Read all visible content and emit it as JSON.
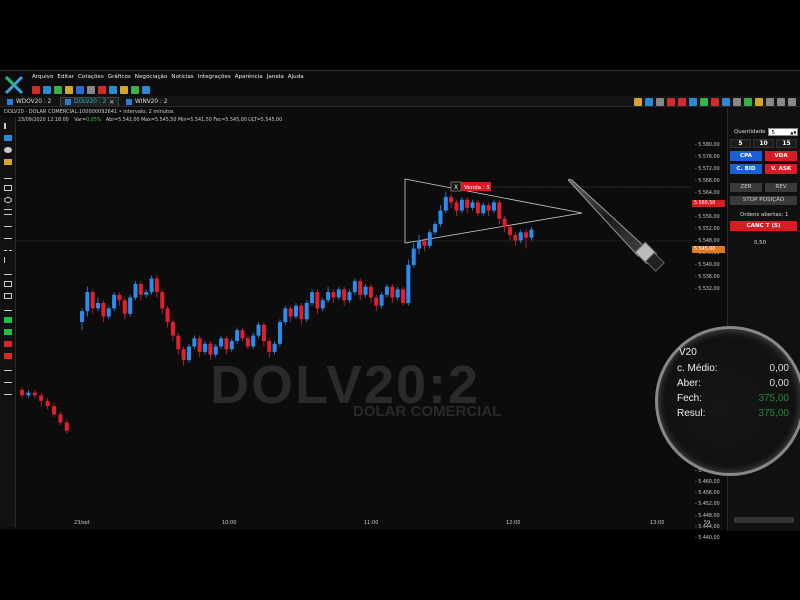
{
  "menu": [
    "Arquivo",
    "Editar",
    "Cotações",
    "Gráficos",
    "Negociação",
    "Notícias",
    "Integrações",
    "Aparência",
    "Janela",
    "Ajuda"
  ],
  "tabs": [
    {
      "label": "WDOV20 : 2",
      "active": false
    },
    {
      "label": "DOLV20 : 2",
      "active": true,
      "close": "✕"
    },
    {
      "label": "WINV20 : 2",
      "active": false
    }
  ],
  "infobar": {
    "symbol": "DOLV20 - DOLAR COMERCIAL:100000092641 • intervalo: 2 minutos",
    "datetime": "23/09/2020 12:18:00",
    "var_label": "Var=",
    "var_value": "0,05%",
    "stats": "Abr=5.542,00  Max=5.545,50  Min=5.541,50  Fec=5.545,00  ULT=5.545,00"
  },
  "watermark": {
    "title": "DOLV20:2",
    "subtitle": "DOLAR COMERCIAL"
  },
  "order_flag": {
    "close": "X",
    "label": "Venda : 5"
  },
  "yaxis": {
    "ticks": [
      "5.580,00",
      "5.576,00",
      "5.572,00",
      "5.568,00",
      "5.564,00",
      "5.560,50",
      "5.556,00",
      "5.552,00",
      "5.548,00",
      "5.545,00",
      "5.540,00",
      "5.536,00",
      "5.532,00",
      "5.484,00",
      "5.480,00",
      "5.476,00",
      "5.472,00",
      "5.468,00",
      "5.464,00",
      "5.460,00",
      "5.456,00",
      "5.452,00",
      "5.448,00",
      "5.444,00",
      "5.440,00"
    ],
    "sell_flag": "5.560,50",
    "last_flag": "5.545,00"
  },
  "xaxis": {
    "ticks": [
      "23/set",
      "10:00",
      "11:00",
      "12:00",
      "13:00"
    ],
    "corner": "59"
  },
  "panel": {
    "quantity_label": "Quantidade",
    "quantity_value": "5",
    "quick_qty": [
      "5",
      "10",
      "15"
    ],
    "buy": "CPA",
    "sell": "VDA",
    "buy_bid": "C. BID",
    "sell_ask": "V. ASK",
    "zero": "ZER",
    "reverse": "REV",
    "stop": "STOP POSIÇÃO",
    "open_orders": "Ordens abertas: 1",
    "cancel": "CANC T (5)",
    "offset": "0,50"
  },
  "lens": {
    "symbol": "V20",
    "rows": [
      {
        "label": "c. Médio:",
        "value": "0,00"
      },
      {
        "label": "Aber:",
        "value": "0,00"
      },
      {
        "label": "Fech:",
        "value": "375,00"
      },
      {
        "label": "Resul:",
        "value": "375,00"
      }
    ]
  },
  "colors": {
    "up": "#2b8cf0",
    "down": "#e0202c",
    "buy": "#1a5fd6",
    "sell": "#d81c24",
    "cancel": "#d81c24",
    "background": "#000000"
  },
  "chart_data": {
    "type": "candlestick",
    "symbol": "DOLV20",
    "interval": "2 minutos",
    "x": [
      "23/set",
      "10:00",
      "11:00",
      "12:00",
      "13:00"
    ],
    "ylim": [
      5440,
      5582
    ],
    "candles": [
      {
        "o": 5486,
        "c": 5484,
        "h": 5487,
        "l": 5483
      },
      {
        "o": 5484,
        "c": 5485,
        "h": 5486,
        "l": 5483
      },
      {
        "o": 5485,
        "c": 5484,
        "h": 5486,
        "l": 5483
      },
      {
        "o": 5484,
        "c": 5482,
        "h": 5485,
        "l": 5480
      },
      {
        "o": 5482,
        "c": 5480,
        "h": 5483,
        "l": 5479
      },
      {
        "o": 5480,
        "c": 5477,
        "h": 5481,
        "l": 5476
      },
      {
        "o": 5477,
        "c": 5474,
        "h": 5478,
        "l": 5473
      },
      {
        "o": 5474,
        "c": 5471,
        "h": 5475,
        "l": 5470
      },
      {
        "o": 5511,
        "c": 5515,
        "h": 5516,
        "l": 5508
      },
      {
        "o": 5515,
        "c": 5522,
        "h": 5524,
        "l": 5513
      },
      {
        "o": 5522,
        "c": 5516,
        "h": 5523,
        "l": 5514
      },
      {
        "o": 5516,
        "c": 5518,
        "h": 5520,
        "l": 5515
      },
      {
        "o": 5518,
        "c": 5513,
        "h": 5519,
        "l": 5511
      },
      {
        "o": 5513,
        "c": 5516,
        "h": 5517,
        "l": 5512
      },
      {
        "o": 5516,
        "c": 5521,
        "h": 5522,
        "l": 5515
      },
      {
        "o": 5521,
        "c": 5519,
        "h": 5522,
        "l": 5517
      },
      {
        "o": 5519,
        "c": 5514,
        "h": 5520,
        "l": 5512
      },
      {
        "o": 5514,
        "c": 5520,
        "h": 5521,
        "l": 5513
      },
      {
        "o": 5520,
        "c": 5525,
        "h": 5526,
        "l": 5519
      },
      {
        "o": 5525,
        "c": 5521,
        "h": 5526,
        "l": 5519
      },
      {
        "o": 5521,
        "c": 5522,
        "h": 5523,
        "l": 5520
      },
      {
        "o": 5522,
        "c": 5527,
        "h": 5528,
        "l": 5521
      },
      {
        "o": 5527,
        "c": 5522,
        "h": 5528,
        "l": 5520
      },
      {
        "o": 5522,
        "c": 5516,
        "h": 5523,
        "l": 5514
      },
      {
        "o": 5516,
        "c": 5511,
        "h": 5517,
        "l": 5509
      },
      {
        "o": 5511,
        "c": 5506,
        "h": 5512,
        "l": 5504
      },
      {
        "o": 5506,
        "c": 5501,
        "h": 5507,
        "l": 5499
      },
      {
        "o": 5501,
        "c": 5497,
        "h": 5502,
        "l": 5495
      },
      {
        "o": 5497,
        "c": 5502,
        "h": 5503,
        "l": 5496
      },
      {
        "o": 5502,
        "c": 5505,
        "h": 5506,
        "l": 5501
      },
      {
        "o": 5505,
        "c": 5500,
        "h": 5506,
        "l": 5498
      },
      {
        "o": 5500,
        "c": 5503,
        "h": 5504,
        "l": 5499
      },
      {
        "o": 5503,
        "c": 5499,
        "h": 5504,
        "l": 5497
      },
      {
        "o": 5499,
        "c": 5502,
        "h": 5503,
        "l": 5498
      },
      {
        "o": 5502,
        "c": 5505,
        "h": 5506,
        "l": 5501
      },
      {
        "o": 5505,
        "c": 5501,
        "h": 5506,
        "l": 5499
      },
      {
        "o": 5501,
        "c": 5504,
        "h": 5505,
        "l": 5500
      },
      {
        "o": 5504,
        "c": 5508,
        "h": 5509,
        "l": 5503
      },
      {
        "o": 5508,
        "c": 5505,
        "h": 5509,
        "l": 5504
      },
      {
        "o": 5505,
        "c": 5502,
        "h": 5506,
        "l": 5501
      },
      {
        "o": 5502,
        "c": 5506,
        "h": 5507,
        "l": 5501
      },
      {
        "o": 5506,
        "c": 5510,
        "h": 5511,
        "l": 5505
      },
      {
        "o": 5510,
        "c": 5504,
        "h": 5511,
        "l": 5502
      },
      {
        "o": 5504,
        "c": 5500,
        "h": 5505,
        "l": 5498
      },
      {
        "o": 5500,
        "c": 5503,
        "h": 5504,
        "l": 5499
      },
      {
        "o": 5503,
        "c": 5511,
        "h": 5512,
        "l": 5502
      },
      {
        "o": 5511,
        "c": 5516,
        "h": 5517,
        "l": 5510
      },
      {
        "o": 5516,
        "c": 5513,
        "h": 5517,
        "l": 5511
      },
      {
        "o": 5513,
        "c": 5517,
        "h": 5518,
        "l": 5512
      },
      {
        "o": 5517,
        "c": 5512,
        "h": 5518,
        "l": 5510
      },
      {
        "o": 5512,
        "c": 5518,
        "h": 5519,
        "l": 5511
      },
      {
        "o": 5518,
        "c": 5522,
        "h": 5523,
        "l": 5517
      },
      {
        "o": 5522,
        "c": 5516,
        "h": 5523,
        "l": 5514
      },
      {
        "o": 5516,
        "c": 5519,
        "h": 5520,
        "l": 5515
      },
      {
        "o": 5519,
        "c": 5522,
        "h": 5524,
        "l": 5518
      },
      {
        "o": 5522,
        "c": 5520,
        "h": 5523,
        "l": 5518
      },
      {
        "o": 5520,
        "c": 5523,
        "h": 5524,
        "l": 5519
      },
      {
        "o": 5523,
        "c": 5519,
        "h": 5524,
        "l": 5517
      },
      {
        "o": 5519,
        "c": 5522,
        "h": 5523,
        "l": 5518
      },
      {
        "o": 5522,
        "c": 5526,
        "h": 5527,
        "l": 5521
      },
      {
        "o": 5526,
        "c": 5521,
        "h": 5527,
        "l": 5519
      },
      {
        "o": 5521,
        "c": 5524,
        "h": 5525,
        "l": 5520
      },
      {
        "o": 5524,
        "c": 5520,
        "h": 5525,
        "l": 5518
      },
      {
        "o": 5520,
        "c": 5517,
        "h": 5521,
        "l": 5515
      },
      {
        "o": 5517,
        "c": 5521,
        "h": 5522,
        "l": 5516
      },
      {
        "o": 5521,
        "c": 5524,
        "h": 5525,
        "l": 5520
      },
      {
        "o": 5524,
        "c": 5520,
        "h": 5525,
        "l": 5518
      },
      {
        "o": 5520,
        "c": 5523,
        "h": 5524,
        "l": 5519
      },
      {
        "o": 5523,
        "c": 5518,
        "h": 5524,
        "l": 5517
      },
      {
        "o": 5518,
        "c": 5532,
        "h": 5534,
        "l": 5517
      },
      {
        "o": 5532,
        "c": 5538,
        "h": 5540,
        "l": 5531
      },
      {
        "o": 5538,
        "c": 5541,
        "h": 5543,
        "l": 5536
      },
      {
        "o": 5541,
        "c": 5539,
        "h": 5542,
        "l": 5537
      },
      {
        "o": 5539,
        "c": 5544,
        "h": 5545,
        "l": 5538
      },
      {
        "o": 5544,
        "c": 5547,
        "h": 5548,
        "l": 5543
      },
      {
        "o": 5547,
        "c": 5552,
        "h": 5554,
        "l": 5546
      },
      {
        "o": 5552,
        "c": 5557,
        "h": 5559,
        "l": 5551
      },
      {
        "o": 5557,
        "c": 5555,
        "h": 5558,
        "l": 5553
      },
      {
        "o": 5555,
        "c": 5552,
        "h": 5556,
        "l": 5550
      },
      {
        "o": 5552,
        "c": 5556,
        "h": 5557,
        "l": 5551
      },
      {
        "o": 5556,
        "c": 5553,
        "h": 5557,
        "l": 5551
      },
      {
        "o": 5553,
        "c": 5555,
        "h": 5556,
        "l": 5552
      },
      {
        "o": 5555,
        "c": 5551,
        "h": 5556,
        "l": 5550
      },
      {
        "o": 5551,
        "c": 5554,
        "h": 5555,
        "l": 5550
      },
      {
        "o": 5554,
        "c": 5552,
        "h": 5555,
        "l": 5550
      },
      {
        "o": 5552,
        "c": 5555,
        "h": 5556,
        "l": 5551
      },
      {
        "o": 5555,
        "c": 5549,
        "h": 5556,
        "l": 5547
      },
      {
        "o": 5549,
        "c": 5546,
        "h": 5550,
        "l": 5544
      },
      {
        "o": 5546,
        "c": 5543,
        "h": 5547,
        "l": 5541
      },
      {
        "o": 5543,
        "c": 5541,
        "h": 5544,
        "l": 5539
      },
      {
        "o": 5541,
        "c": 5544,
        "h": 5545,
        "l": 5540
      },
      {
        "o": 5544,
        "c": 5542,
        "h": 5545,
        "l": 5538
      },
      {
        "o": 5542,
        "c": 5545,
        "h": 5546,
        "l": 5541
      }
    ]
  }
}
